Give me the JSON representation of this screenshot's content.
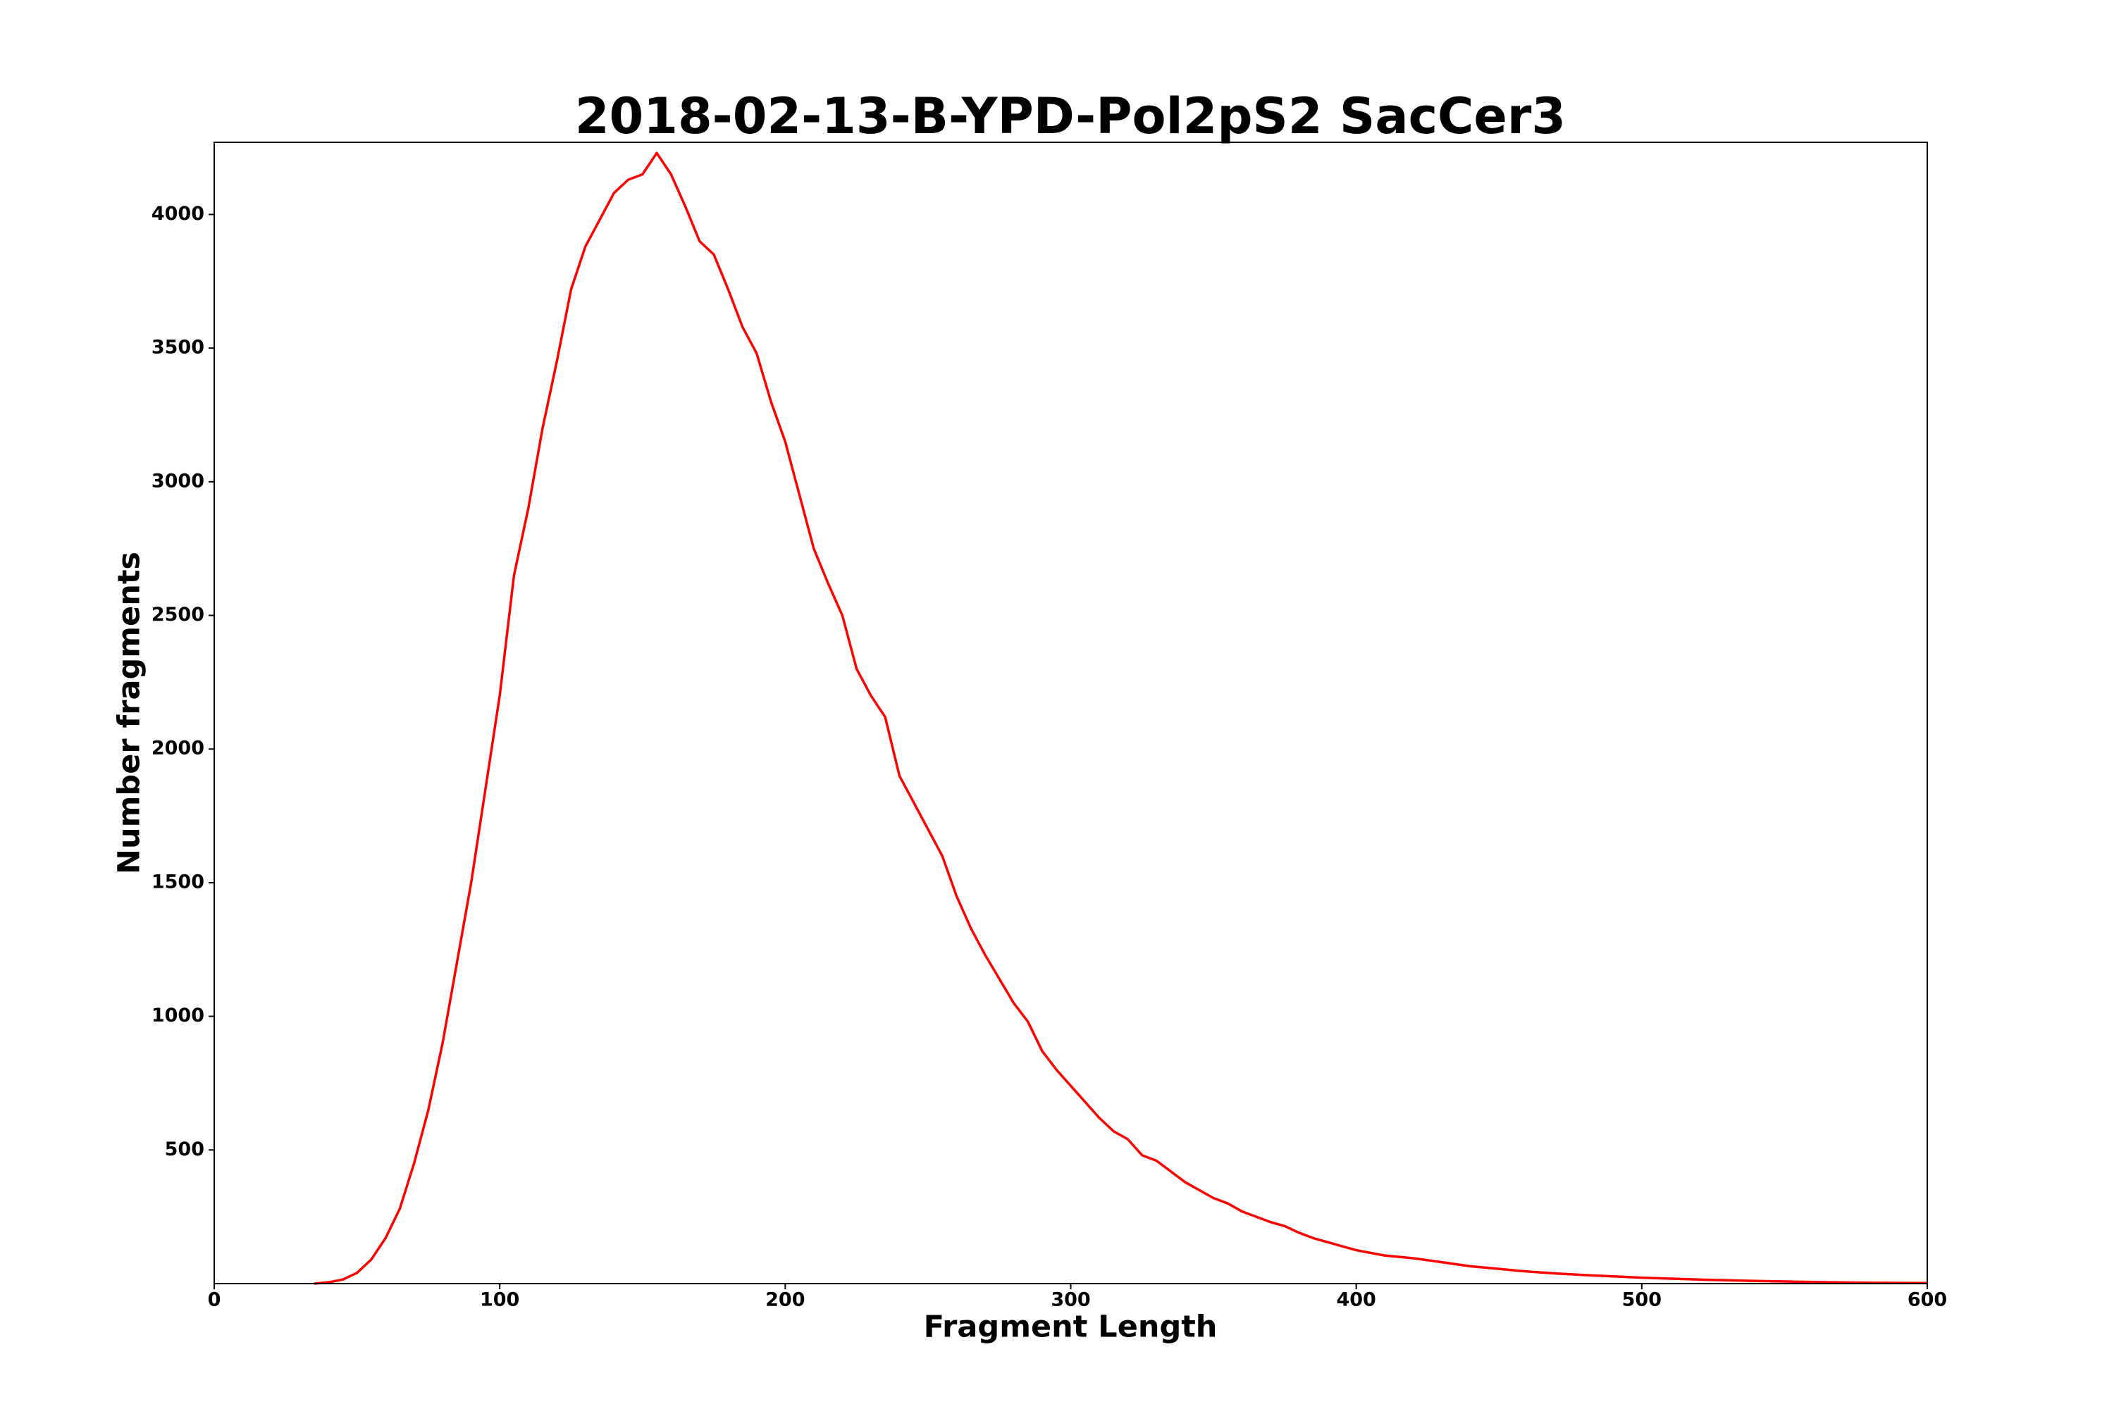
{
  "chart_data": {
    "type": "line",
    "title": "2018-02-13-B-YPD-Pol2pS2 SacCer3",
    "xlabel": "Fragment Length",
    "ylabel": "Number fragments",
    "xlim": [
      0,
      600
    ],
    "ylim": [
      0,
      4270
    ],
    "xticks": [
      0,
      100,
      200,
      300,
      400,
      500,
      600
    ],
    "yticks": [
      500,
      1000,
      1500,
      2000,
      2500,
      3000,
      3500,
      4000
    ],
    "grid": false,
    "x": [
      35,
      40,
      45,
      50,
      55,
      60,
      65,
      70,
      75,
      80,
      85,
      90,
      95,
      100,
      105,
      110,
      115,
      120,
      125,
      130,
      135,
      140,
      145,
      150,
      155,
      160,
      165,
      170,
      175,
      180,
      185,
      190,
      195,
      200,
      205,
      210,
      215,
      220,
      225,
      230,
      235,
      240,
      245,
      250,
      255,
      260,
      265,
      270,
      275,
      280,
      285,
      290,
      295,
      300,
      305,
      310,
      315,
      320,
      325,
      330,
      335,
      340,
      345,
      350,
      355,
      360,
      365,
      370,
      375,
      380,
      385,
      390,
      395,
      400,
      410,
      420,
      430,
      440,
      450,
      460,
      470,
      480,
      490,
      500,
      520,
      540,
      560,
      580,
      600
    ],
    "series": [
      {
        "name": "fragments",
        "color": "#ff0000",
        "values": [
          0,
          5,
          15,
          40,
          90,
          170,
          280,
          450,
          650,
          900,
          1200,
          1500,
          1850,
          2200,
          2650,
          2900,
          3200,
          3450,
          3720,
          3880,
          3980,
          4080,
          4130,
          4150,
          4230,
          4150,
          4030,
          3900,
          3850,
          3720,
          3580,
          3480,
          3300,
          3150,
          2950,
          2750,
          2620,
          2500,
          2300,
          2200,
          2120,
          1900,
          1800,
          1700,
          1600,
          1450,
          1330,
          1230,
          1140,
          1050,
          980,
          870,
          800,
          740,
          680,
          620,
          570,
          540,
          480,
          460,
          420,
          380,
          350,
          320,
          300,
          270,
          250,
          230,
          215,
          190,
          170,
          155,
          140,
          125,
          105,
          95,
          80,
          65,
          55,
          45,
          38,
          32,
          27,
          22,
          15,
          10,
          6,
          3,
          2
        ]
      }
    ]
  }
}
